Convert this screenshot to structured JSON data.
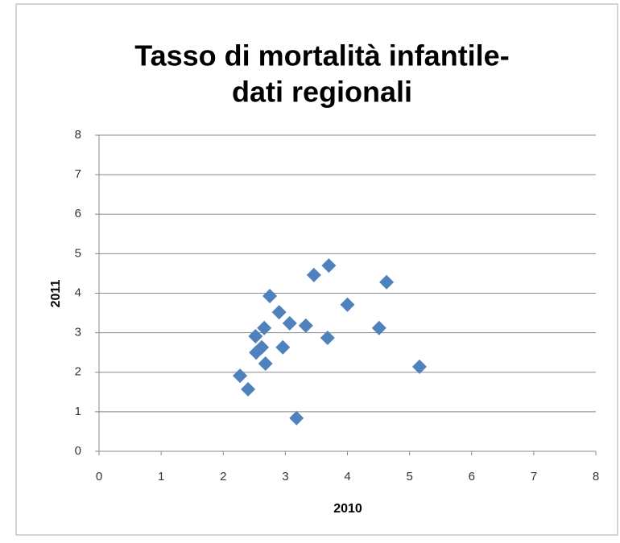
{
  "chart_data": {
    "type": "scatter",
    "title": [
      "Tasso di mortalità infantile-",
      "dati regionali"
    ],
    "x_label": "2010",
    "y_label": "2011",
    "color": "#4f81bd",
    "x": [
      2.27,
      2.4,
      2.52,
      2.66,
      2.53,
      2.62,
      2.68,
      2.75,
      2.9,
      2.96,
      3.07,
      3.18,
      3.33,
      3.46,
      3.68,
      3.7,
      4.0,
      4.51,
      4.63,
      5.16
    ],
    "values": [
      1.91,
      1.57,
      2.91,
      3.12,
      2.5,
      2.63,
      2.22,
      3.93,
      3.52,
      2.63,
      3.24,
      0.84,
      3.18,
      4.46,
      2.87,
      4.7,
      3.71,
      3.12,
      4.28,
      2.14
    ],
    "xlim": [
      0,
      8
    ],
    "ylim": [
      0,
      8
    ],
    "xticks": [
      0,
      1,
      2,
      3,
      4,
      5,
      6,
      7,
      8
    ],
    "yticks": [
      0,
      1,
      2,
      3,
      4,
      5,
      6,
      7,
      8
    ],
    "grid": true
  }
}
